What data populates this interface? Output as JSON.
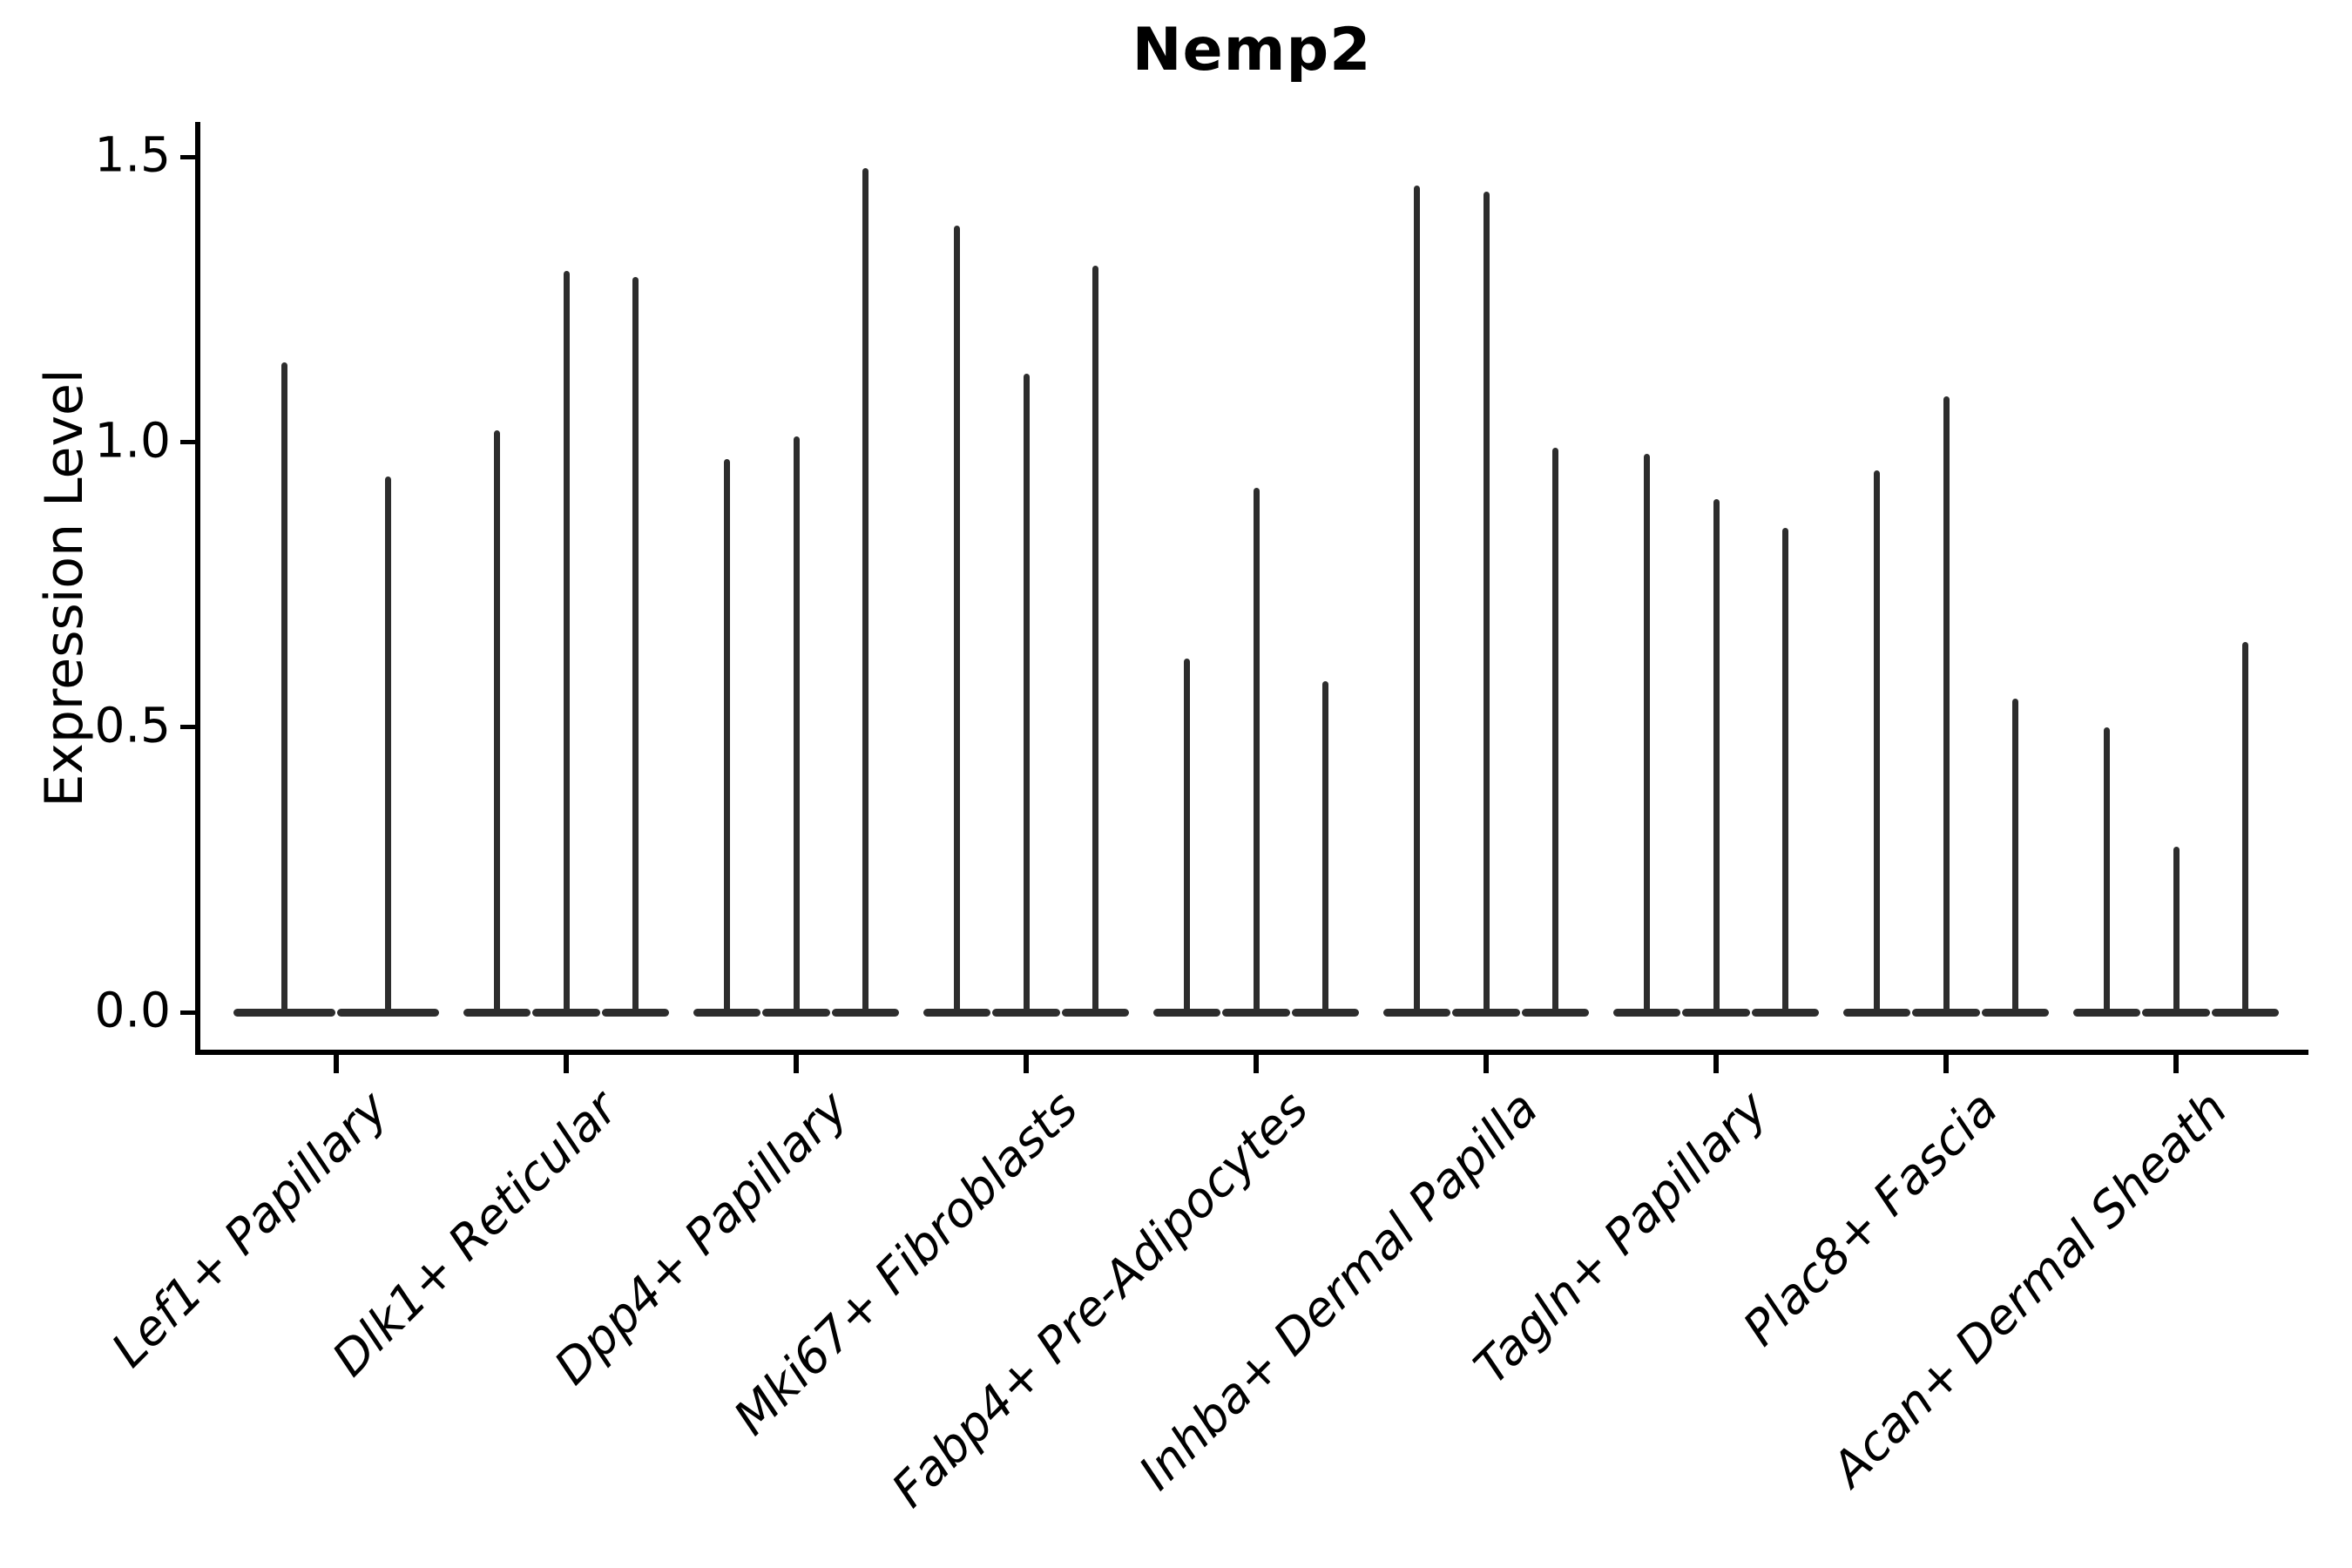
{
  "title": "Nemp2",
  "axes": {
    "y": {
      "label": "Expression Level",
      "ticks": [
        {
          "label": "0.0",
          "value": 0.0
        },
        {
          "label": "0.5",
          "value": 0.5
        },
        {
          "label": "1.0",
          "value": 1.0
        },
        {
          "label": "1.5",
          "value": 1.5
        }
      ]
    },
    "x": {
      "labels": [
        "Lef1+ Papillary",
        "Dlk1+ Reticular",
        "Dpp4+ Papillary",
        "Mki67+ Fibroblasts",
        "Fabp4+ Pre-Adipocytes",
        "Inhba+ Dermal Papilla",
        "Tagln+ Papillary",
        "Plac8+ Fascia",
        "Acan+ Dermal Sheath"
      ]
    }
  },
  "chart_data": {
    "type": "violin",
    "title": "Nemp2",
    "xlabel": "",
    "ylabel": "Expression Level",
    "ylim": [
      0,
      1.56
    ],
    "yticks": [
      0.0,
      0.5,
      1.0,
      1.5
    ],
    "grid": false,
    "legend": "none",
    "categories": [
      "Lef1+ Papillary",
      "Dlk1+ Reticular",
      "Dpp4+ Papillary",
      "Mki67+ Fibroblasts",
      "Fabp4+ Pre-Adipocytes",
      "Inhba+ Dermal Papilla",
      "Tagln+ Papillary",
      "Plac8+ Fascia",
      "Acan+ Dermal Sheath"
    ],
    "description": "Each category holds multiple needle-thin violins: density mass concentrated at expression 0 (wide flat base) with a thin tail reaching the listed maximum expression value.",
    "groups": [
      {
        "category": "Lef1+ Papillary",
        "violin_maxima": [
          1.14,
          0.94
        ]
      },
      {
        "category": "Dlk1+ Reticular",
        "violin_maxima": [
          1.02,
          1.3,
          1.29
        ]
      },
      {
        "category": "Dpp4+ Papillary",
        "violin_maxima": [
          0.97,
          1.01,
          1.48
        ]
      },
      {
        "category": "Mki67+ Fibroblasts",
        "violin_maxima": [
          1.38,
          1.12,
          1.31
        ]
      },
      {
        "category": "Fabp4+ Pre-Adipocytes",
        "violin_maxima": [
          0.62,
          0.92,
          0.58
        ]
      },
      {
        "category": "Inhba+ Dermal Papilla",
        "violin_maxima": [
          1.45,
          1.44,
          0.99
        ]
      },
      {
        "category": "Tagln+ Papillary",
        "violin_maxima": [
          0.98,
          0.9,
          0.85
        ]
      },
      {
        "category": "Plac8+ Fascia",
        "violin_maxima": [
          0.95,
          1.08,
          0.55
        ]
      },
      {
        "category": "Acan+ Dermal Sheath",
        "violin_maxima": [
          0.5,
          0.29,
          0.65
        ]
      }
    ],
    "colors": {
      "violin": "#2d2d2d",
      "spine": "#000000",
      "text": "#000000",
      "background": "#ffffff"
    }
  }
}
